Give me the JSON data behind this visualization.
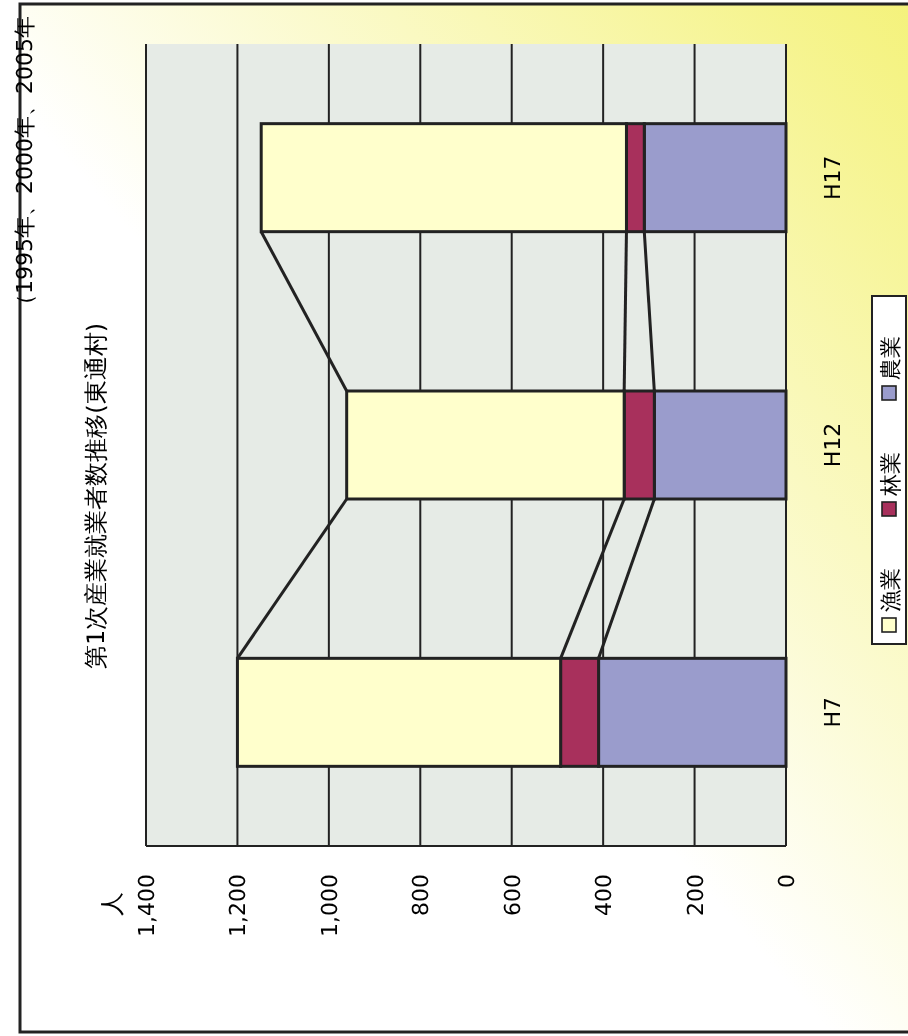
{
  "chart_data": {
    "type": "bar",
    "stacked": true,
    "orientation": "horizontal",
    "title": "第1次産業就業者数推移(東通村)",
    "annotations": [
      "（1995年、2000年、2005年",
      "人"
    ],
    "categories": [
      "H17",
      "H12",
      "H7"
    ],
    "series": [
      {
        "name": "農業",
        "color": "#9a9ccc",
        "values": [
          310,
          288,
          410
        ]
      },
      {
        "name": "林業",
        "color": "#a8305c",
        "values": [
          39,
          66,
          83
        ]
      },
      {
        "name": "漁業",
        "color": "#ffffcc",
        "values": [
          799,
          607,
          707
        ]
      }
    ],
    "xlim": [
      1400,
      0
    ],
    "xticks": [
      {
        "value": 1400,
        "label": "1,400"
      },
      {
        "value": 1200,
        "label": "1,200"
      },
      {
        "value": 1000,
        "label": "1,000"
      },
      800,
      600,
      400,
      200,
      0
    ],
    "grid": "x",
    "legend": "right"
  }
}
